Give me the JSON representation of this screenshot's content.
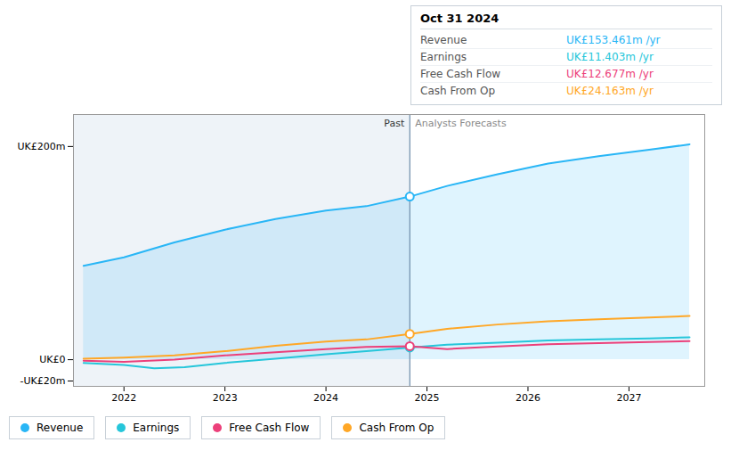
{
  "chart_data": {
    "type": "line",
    "xlim": [
      2021.5,
      2027.75
    ],
    "xticks": [
      2022,
      2023,
      2024,
      2025,
      2026,
      2027
    ],
    "ylim": [
      -25,
      230
    ],
    "yticks": [
      {
        "value": 200,
        "label": "UK£200m"
      },
      {
        "value": 0,
        "label": "UK£0"
      },
      {
        "value": -20,
        "label": "-UK£20m"
      }
    ],
    "grid": false,
    "legend": "bottom",
    "series": [
      {
        "name": "Revenue",
        "color": "#29b6f6",
        "type": "area",
        "x": [
          2021.6,
          2022.0,
          2022.5,
          2023.0,
          2023.5,
          2024.0,
          2024.4,
          2024.83,
          2025.2,
          2025.7,
          2026.2,
          2026.7,
          2027.2,
          2027.6
        ],
        "values": [
          88,
          96,
          110,
          122,
          132,
          140,
          144,
          153,
          163,
          174,
          184,
          191,
          197,
          202
        ]
      },
      {
        "name": "Earnings",
        "color": "#26c6da",
        "type": "line",
        "x": [
          2021.6,
          2022.0,
          2022.3,
          2022.6,
          2023.0,
          2023.5,
          2024.0,
          2024.4,
          2024.83,
          2025.2,
          2025.7,
          2026.2,
          2026.7,
          2027.2,
          2027.6
        ],
        "values": [
          -3,
          -5,
          -8,
          -7,
          -3,
          1,
          5,
          8,
          11.4,
          14,
          16,
          18,
          19,
          20,
          21
        ]
      },
      {
        "name": "Free Cash Flow",
        "color": "#ec407a",
        "type": "line",
        "x": [
          2021.6,
          2022.0,
          2022.5,
          2023.0,
          2023.5,
          2024.0,
          2024.4,
          2024.83,
          2025.2,
          2025.7,
          2026.2,
          2026.7,
          2027.2,
          2027.6
        ],
        "values": [
          -1,
          -2,
          0,
          4,
          7,
          10,
          12,
          12.7,
          10,
          12.5,
          14.5,
          15.5,
          16.5,
          17.5
        ]
      },
      {
        "name": "Cash From Op",
        "color": "#ffa726",
        "type": "line",
        "x": [
          2021.6,
          2022.0,
          2022.5,
          2023.0,
          2023.5,
          2024.0,
          2024.4,
          2024.83,
          2025.2,
          2025.7,
          2026.2,
          2026.7,
          2027.2,
          2027.6
        ],
        "values": [
          1,
          2,
          4,
          8,
          13,
          17,
          19,
          24.2,
          29,
          33,
          36,
          38,
          39.5,
          41
        ]
      }
    ],
    "markers": {
      "x": 2024.83,
      "values": [
        153,
        11.4,
        12.7,
        24.2
      ]
    },
    "divider": {
      "x": 2024.83,
      "before_label": "Past",
      "after_label": "Analysts Forecasts"
    },
    "tooltip": {
      "title": "Oct 31 2024",
      "rows": [
        {
          "label": "Revenue",
          "value": "UK£153.461m /yr",
          "color": "#29b6f6"
        },
        {
          "label": "Earnings",
          "value": "UK£11.403m /yr",
          "color": "#26c6da"
        },
        {
          "label": "Free Cash Flow",
          "value": "UK£12.677m /yr",
          "color": "#ec407a"
        },
        {
          "label": "Cash From Op",
          "value": "UK£24.163m /yr",
          "color": "#ffa726"
        }
      ]
    }
  }
}
